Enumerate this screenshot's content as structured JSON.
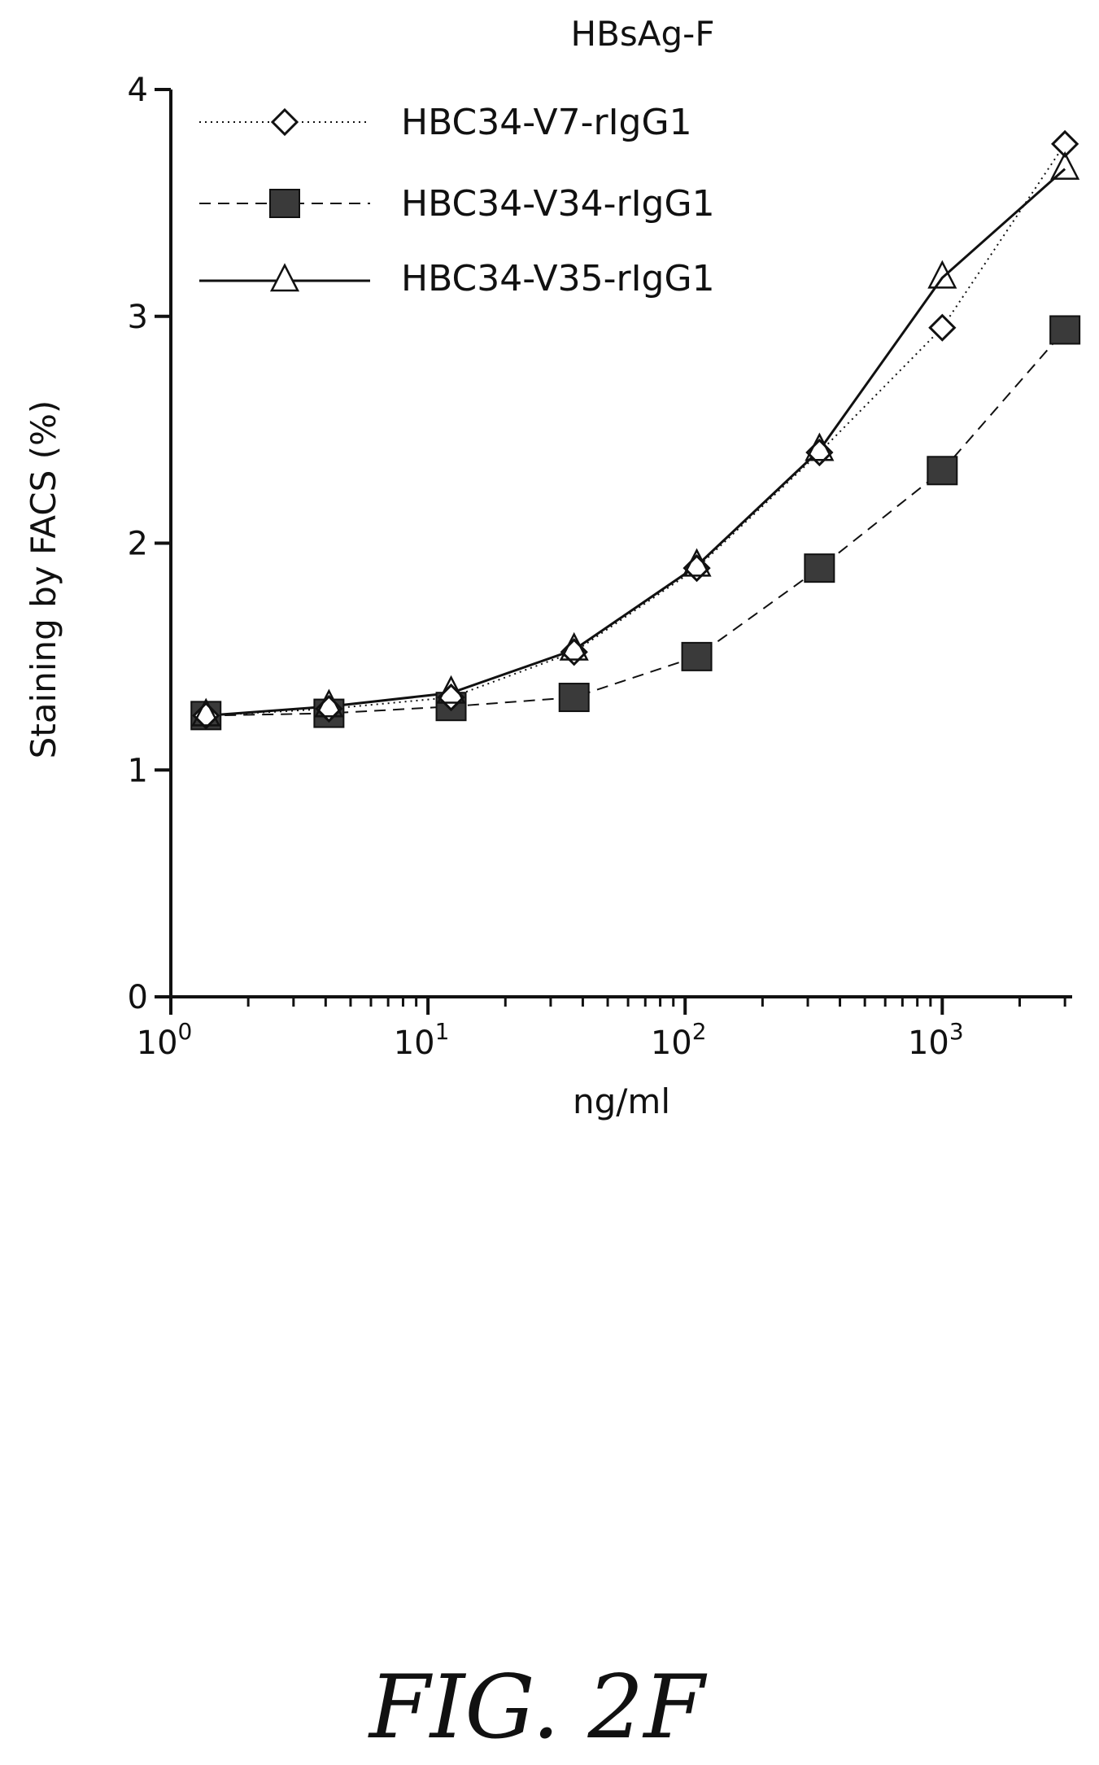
{
  "figure": {
    "caption": "FIG. 2F"
  },
  "chart_data": {
    "type": "line",
    "title": "HBsAg-F",
    "xlabel": "ng/ml",
    "ylabel": "Staining by FACS (%)",
    "x_scale": "log",
    "xlim": [
      1,
      3200
    ],
    "ylim": [
      0,
      4
    ],
    "x_ticks": [
      {
        "value": 1,
        "base": "10",
        "exp": "0"
      },
      {
        "value": 10,
        "base": "10",
        "exp": "1"
      },
      {
        "value": 100,
        "base": "10",
        "exp": "2"
      },
      {
        "value": 1000,
        "base": "10",
        "exp": "3"
      }
    ],
    "y_ticks": [
      {
        "value": 0,
        "label": "0"
      },
      {
        "value": 1,
        "label": "1"
      },
      {
        "value": 2,
        "label": "2"
      },
      {
        "value": 3,
        "label": "3"
      },
      {
        "value": 4,
        "label": "4"
      }
    ],
    "grid": false,
    "legend_position": "top-left",
    "x": [
      1.37,
      4.12,
      12.3,
      37,
      111,
      333,
      1000,
      3000
    ],
    "series": [
      {
        "name": "HBC34-V7-rIgG1",
        "marker": "diamond",
        "line_style": "dotted",
        "values": [
          1.24,
          1.27,
          1.32,
          1.52,
          1.89,
          2.4,
          2.95,
          3.76
        ]
      },
      {
        "name": "HBC34-V34-rIgG1",
        "marker": "square",
        "line_style": "dashed",
        "values": [
          1.24,
          1.25,
          1.28,
          1.32,
          1.5,
          1.89,
          2.32,
          2.94
        ]
      },
      {
        "name": "HBC34-V35-rIgG1",
        "marker": "triangle",
        "line_style": "solid",
        "values": [
          1.24,
          1.28,
          1.34,
          1.53,
          1.9,
          2.41,
          3.17,
          3.65
        ]
      }
    ],
    "colors": {
      "ink": "#111111",
      "square_fill": "#3a3a3a"
    }
  }
}
